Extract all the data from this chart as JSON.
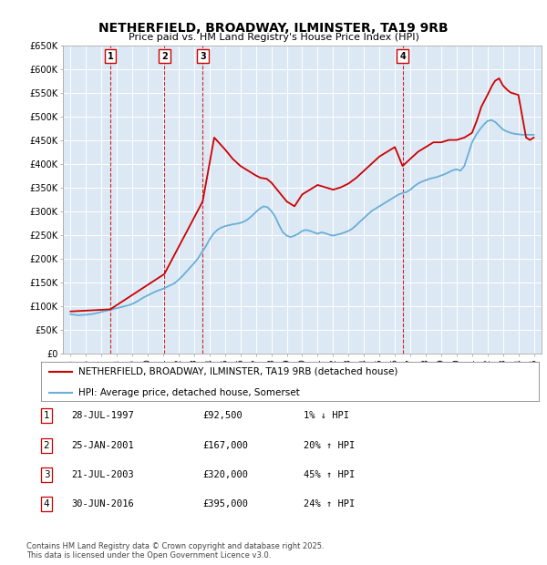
{
  "title": "NETHERFIELD, BROADWAY, ILMINSTER, TA19 9RB",
  "subtitle": "Price paid vs. HM Land Registry's House Price Index (HPI)",
  "background_color": "#dce9f5",
  "plot_bg_color": "#dce9f5",
  "ylim": [
    0,
    650000
  ],
  "yticks": [
    0,
    50000,
    100000,
    150000,
    200000,
    250000,
    300000,
    350000,
    400000,
    450000,
    500000,
    550000,
    600000,
    650000
  ],
  "ytick_labels": [
    "£0",
    "£50K",
    "£100K",
    "£150K",
    "£200K",
    "£250K",
    "£300K",
    "£350K",
    "£400K",
    "£450K",
    "£500K",
    "£550K",
    "£600K",
    "£650K"
  ],
  "xlim_start": 1994.5,
  "xlim_end": 2025.5,
  "hpi_line_color": "#6baed6",
  "price_line_color": "#cc0000",
  "marker_line_color": "#cc0000",
  "transactions": [
    {
      "num": 1,
      "date": "28-JUL-1997",
      "price": 92500,
      "pct": "1%",
      "dir": "↓",
      "year": 1997.57
    },
    {
      "num": 2,
      "date": "25-JAN-2001",
      "price": 167000,
      "pct": "20%",
      "dir": "↑",
      "year": 2001.07
    },
    {
      "num": 3,
      "date": "21-JUL-2003",
      "price": 320000,
      "pct": "45%",
      "dir": "↑",
      "year": 2003.55
    },
    {
      "num": 4,
      "date": "30-JUN-2016",
      "price": 395000,
      "pct": "24%",
      "dir": "↑",
      "year": 2016.5
    }
  ],
  "legend_label_price": "NETHERFIELD, BROADWAY, ILMINSTER, TA19 9RB (detached house)",
  "legend_label_hpi": "HPI: Average price, detached house, Somerset",
  "footer_line1": "Contains HM Land Registry data © Crown copyright and database right 2025.",
  "footer_line2": "This data is licensed under the Open Government Licence v3.0.",
  "hpi_data": {
    "years": [
      1995.0,
      1995.25,
      1995.5,
      1995.75,
      1996.0,
      1996.25,
      1996.5,
      1996.75,
      1997.0,
      1997.25,
      1997.5,
      1997.75,
      1998.0,
      1998.25,
      1998.5,
      1998.75,
      1999.0,
      1999.25,
      1999.5,
      1999.75,
      2000.0,
      2000.25,
      2000.5,
      2000.75,
      2001.0,
      2001.25,
      2001.5,
      2001.75,
      2002.0,
      2002.25,
      2002.5,
      2002.75,
      2003.0,
      2003.25,
      2003.5,
      2003.75,
      2004.0,
      2004.25,
      2004.5,
      2004.75,
      2005.0,
      2005.25,
      2005.5,
      2005.75,
      2006.0,
      2006.25,
      2006.5,
      2006.75,
      2007.0,
      2007.25,
      2007.5,
      2007.75,
      2008.0,
      2008.25,
      2008.5,
      2008.75,
      2009.0,
      2009.25,
      2009.5,
      2009.75,
      2010.0,
      2010.25,
      2010.5,
      2010.75,
      2011.0,
      2011.25,
      2011.5,
      2011.75,
      2012.0,
      2012.25,
      2012.5,
      2012.75,
      2013.0,
      2013.25,
      2013.5,
      2013.75,
      2014.0,
      2014.25,
      2014.5,
      2014.75,
      2015.0,
      2015.25,
      2015.5,
      2015.75,
      2016.0,
      2016.25,
      2016.5,
      2016.75,
      2017.0,
      2017.25,
      2017.5,
      2017.75,
      2018.0,
      2018.25,
      2018.5,
      2018.75,
      2019.0,
      2019.25,
      2019.5,
      2019.75,
      2020.0,
      2020.25,
      2020.5,
      2020.75,
      2021.0,
      2021.25,
      2021.5,
      2021.75,
      2022.0,
      2022.25,
      2022.5,
      2022.75,
      2023.0,
      2023.25,
      2023.5,
      2023.75,
      2024.0,
      2024.25,
      2024.5,
      2024.75,
      2025.0
    ],
    "values": [
      82000,
      81000,
      80000,
      80500,
      81000,
      82000,
      83000,
      85000,
      87000,
      89000,
      91000,
      93000,
      95000,
      97000,
      99000,
      101000,
      104000,
      108000,
      113000,
      118000,
      122000,
      126000,
      130000,
      133000,
      136000,
      140000,
      144000,
      148000,
      155000,
      163000,
      172000,
      181000,
      190000,
      200000,
      213000,
      225000,
      240000,
      252000,
      260000,
      265000,
      268000,
      270000,
      272000,
      273000,
      275000,
      278000,
      283000,
      290000,
      298000,
      305000,
      310000,
      308000,
      300000,
      288000,
      270000,
      255000,
      248000,
      245000,
      248000,
      252000,
      258000,
      260000,
      258000,
      255000,
      252000,
      255000,
      253000,
      250000,
      248000,
      250000,
      252000,
      255000,
      258000,
      263000,
      270000,
      278000,
      285000,
      293000,
      300000,
      305000,
      310000,
      315000,
      320000,
      325000,
      330000,
      335000,
      338000,
      340000,
      345000,
      352000,
      358000,
      362000,
      365000,
      368000,
      370000,
      372000,
      375000,
      378000,
      382000,
      386000,
      388000,
      385000,
      395000,
      420000,
      445000,
      460000,
      472000,
      482000,
      490000,
      492000,
      488000,
      480000,
      472000,
      468000,
      465000,
      463000,
      462000,
      461000,
      461000,
      461000,
      461000
    ]
  },
  "price_data": {
    "years": [
      1995.0,
      1997.57,
      2001.07,
      2003.55,
      2004.3,
      2005.0,
      2005.5,
      2006.0,
      2006.5,
      2007.0,
      2007.3,
      2007.7,
      2008.0,
      2008.5,
      2009.0,
      2009.5,
      2010.0,
      2010.5,
      2011.0,
      2011.5,
      2012.0,
      2012.5,
      2013.0,
      2013.5,
      2014.0,
      2014.5,
      2015.0,
      2015.5,
      2016.0,
      2016.5,
      2017.0,
      2017.5,
      2018.0,
      2018.5,
      2019.0,
      2019.5,
      2020.0,
      2020.5,
      2021.0,
      2021.3,
      2021.6,
      2022.0,
      2022.3,
      2022.5,
      2022.75,
      2023.0,
      2023.3,
      2023.5,
      2024.0,
      2024.5,
      2024.75,
      2025.0
    ],
    "values": [
      88000,
      92500,
      167000,
      320000,
      455000,
      430000,
      410000,
      395000,
      385000,
      375000,
      370000,
      368000,
      360000,
      340000,
      320000,
      310000,
      335000,
      345000,
      355000,
      350000,
      345000,
      350000,
      358000,
      370000,
      385000,
      400000,
      415000,
      425000,
      435000,
      395000,
      410000,
      425000,
      435000,
      445000,
      445000,
      450000,
      450000,
      455000,
      465000,
      490000,
      520000,
      545000,
      565000,
      575000,
      580000,
      565000,
      555000,
      550000,
      545000,
      455000,
      450000,
      455000
    ]
  }
}
